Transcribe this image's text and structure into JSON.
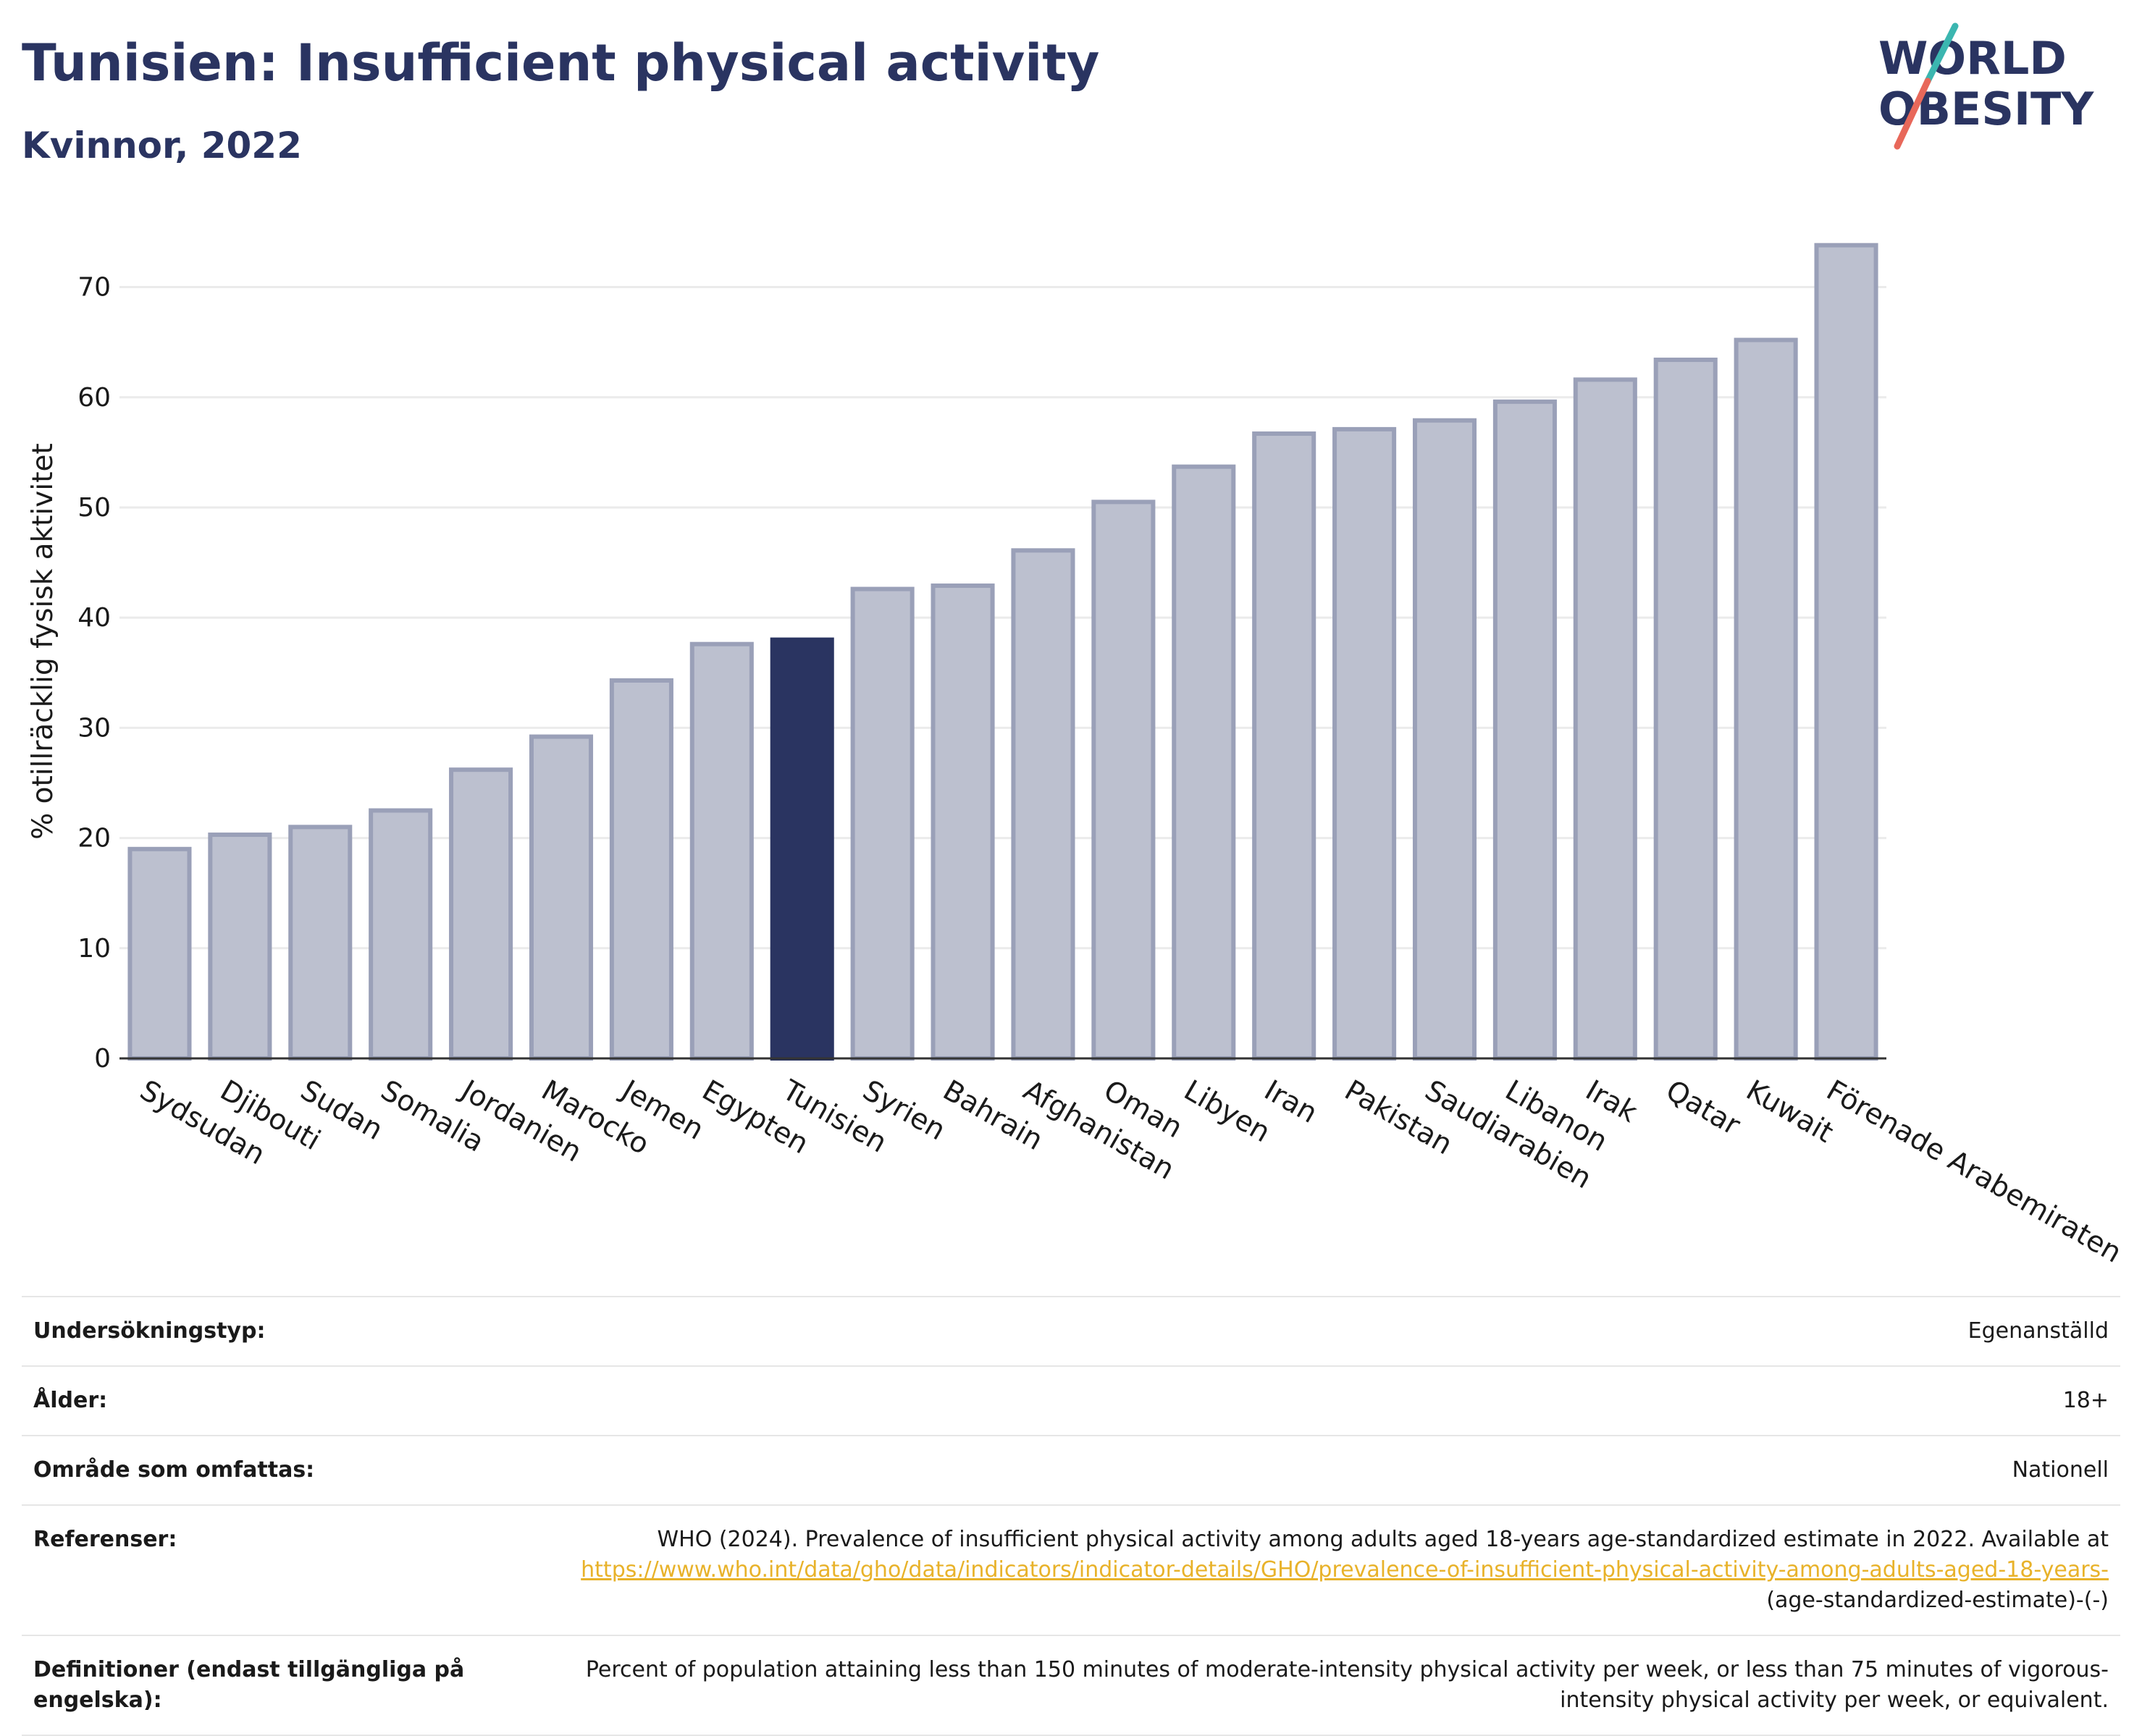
{
  "header": {
    "title": "Tunisien: Insufficient physical activity",
    "subtitle": "Kvinnor, 2022"
  },
  "logo": {
    "line1": "WORLD",
    "line2": "OBESITY",
    "colors": {
      "text": "#2a3461",
      "slash_teal": "#3bb6b0",
      "slash_red": "#e8685a"
    }
  },
  "colors": {
    "bar_default": "#bcc0cf",
    "bar_border": "#9aa0b8",
    "bar_highlight": "#2a3461",
    "grid": "#ebebeb",
    "link": "#e8b22a"
  },
  "chart_data": {
    "type": "bar",
    "title": "Tunisien: Insufficient physical activity",
    "subtitle": "Kvinnor, 2022",
    "xlabel": "",
    "ylabel": "% otillräcklig fysisk aktivitet",
    "ylim": [
      0,
      77
    ],
    "yticks": [
      0,
      10,
      20,
      30,
      40,
      50,
      60,
      70
    ],
    "grid": true,
    "highlight": "Tunisien",
    "categories": [
      "Sydsudan",
      "Djibouti",
      "Sudan",
      "Somalia",
      "Jordanien",
      "Marocko",
      "Jemen",
      "Egypten",
      "Tunisien",
      "Syrien",
      "Bahrain",
      "Afghanistan",
      "Oman",
      "Libyen",
      "Iran",
      "Pakistan",
      "Saudiarabien",
      "Libanon",
      "Irak",
      "Qatar",
      "Kuwait",
      "Förenade Arabemiraten"
    ],
    "values": [
      19.0,
      20.3,
      21.0,
      22.5,
      26.2,
      29.2,
      34.3,
      37.6,
      38.0,
      42.6,
      42.9,
      46.1,
      50.5,
      53.7,
      56.7,
      57.1,
      57.9,
      59.6,
      61.6,
      63.4,
      65.2,
      73.8
    ]
  },
  "meta": {
    "rows": [
      {
        "key": "Undersökningstyp:",
        "value": "Egenanställd"
      },
      {
        "key": "Ålder:",
        "value": "18+"
      },
      {
        "key": "Område som omfattas:",
        "value": "Nationell"
      }
    ],
    "references": {
      "key": "Referenser:",
      "text": "WHO (2024). Prevalence of insufficient physical activity among adults aged 18-years age-standardized estimate in 2022. Available at",
      "link": "https://www.who.int/data/gho/data/indicators/indicator-details/GHO/prevalence-of-insufficient-physical-activity-among-adults-aged-18-years-",
      "suffix": "(age-standardized-estimate)-(-)"
    },
    "definitions": {
      "key": "Definitioner (endast tillgängliga på engelska):",
      "value": "Percent of population attaining less than 150 minutes of moderate-intensity physical activity per week, or less than 75 minutes of vigorous-intensity physical activity per week, or equivalent."
    }
  }
}
